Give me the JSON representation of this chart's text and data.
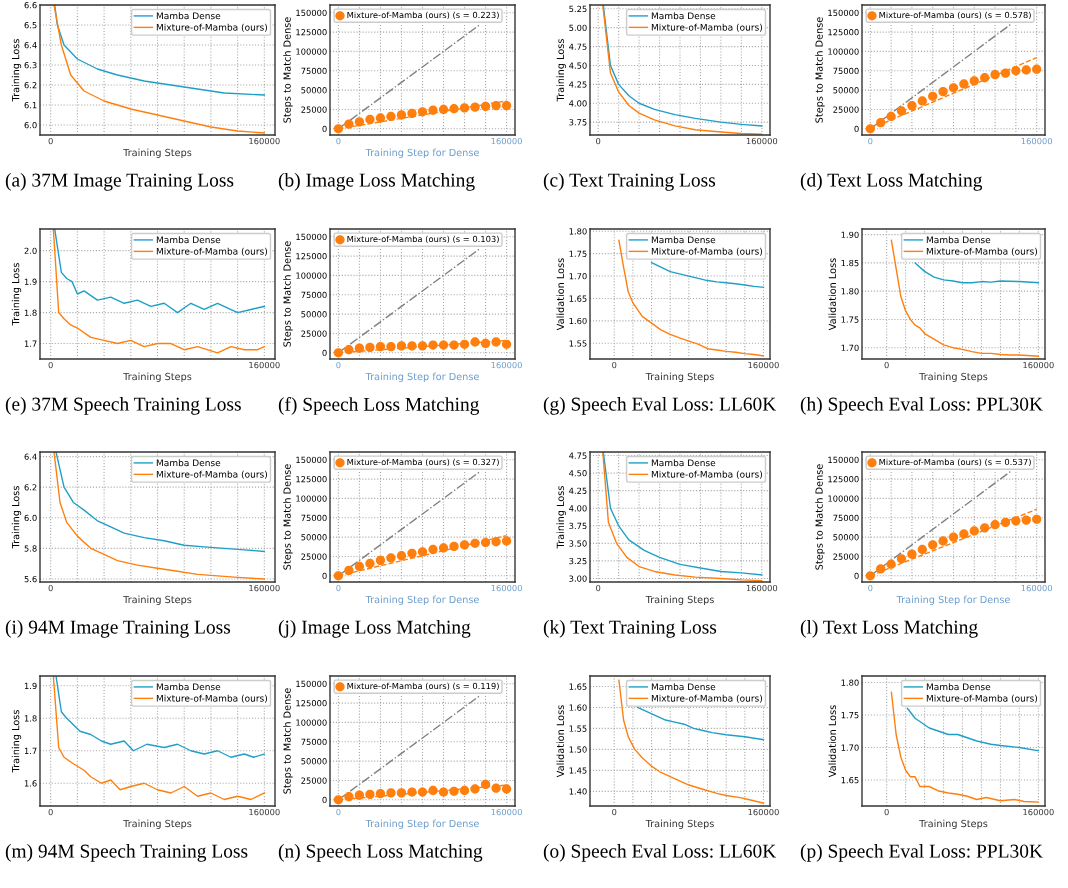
{
  "chart_data": [
    {
      "type": "line",
      "ylabel": "Training Loss",
      "xlabel": "Training Steps",
      "legend": "top right",
      "grid": true,
      "xlim": [
        -8000,
        168000
      ],
      "ylim": [
        5.95,
        6.6
      ],
      "xticks": [
        0,
        {
          "value": 20000,
          "label": null
        },
        {
          "value": 40000,
          "label": null
        },
        {
          "value": 60000,
          "label": null
        },
        {
          "value": 80000,
          "label": null
        },
        {
          "value": 100000,
          "label": null
        },
        {
          "value": 120000,
          "label": null
        },
        {
          "value": 140000,
          "label": null
        },
        160000
      ],
      "yticks": [
        {
          "value": 6.0,
          "label": "6.0"
        },
        6.1,
        6.2,
        6.3,
        6.4,
        6.5,
        6.6
      ],
      "annotations": [
        "(a) 37M Image Training Loss"
      ],
      "series": [
        {
          "name": "Mamba Dense",
          "color": "#1f9fc8",
          "x": [
            3000,
            5000,
            10000,
            20000,
            35000,
            50000,
            70000,
            90000,
            110000,
            130000,
            160000
          ],
          "values": [
            6.6,
            6.5,
            6.4,
            6.33,
            6.28,
            6.25,
            6.22,
            6.2,
            6.18,
            6.16,
            6.15
          ]
        },
        {
          "name": "Mixture-of-Mamba (ours)",
          "color": "#ff7f0e",
          "x": [
            2500,
            8000,
            15000,
            25000,
            40000,
            60000,
            80000,
            100000,
            120000,
            140000,
            160000
          ],
          "values": [
            6.6,
            6.4,
            6.25,
            6.17,
            6.12,
            6.08,
            6.05,
            6.02,
            5.99,
            5.97,
            5.96
          ]
        }
      ]
    },
    {
      "type": "scatter",
      "ylabel": "Steps to Match Dense",
      "xlabel": "Training Step for Dense",
      "legend": "top left",
      "grid": true,
      "xlim": [
        -8000,
        168000
      ],
      "ylim": [
        -8000,
        160000
      ],
      "xticks": [
        0,
        {
          "value": 20000,
          "label": null
        },
        {
          "value": 40000,
          "label": null
        },
        {
          "value": 60000,
          "label": null
        },
        {
          "value": 80000,
          "label": null
        },
        {
          "value": 100000,
          "label": null
        },
        {
          "value": 120000,
          "label": null
        },
        {
          "value": 140000,
          "label": null
        },
        160000
      ],
      "yticks": [
        0,
        25000,
        50000,
        75000,
        100000,
        125000,
        150000
      ],
      "annotations": [
        "(b) Image Loss Matching"
      ],
      "series": [
        {
          "type": "line",
          "line_style": "dashdot",
          "color": "#808080",
          "x": [
            0,
            135000
          ],
          "values": [
            0,
            135000
          ]
        },
        {
          "type": "line",
          "line_style": "dashed",
          "color": "#ff7f0e",
          "x": [
            0,
            160000
          ],
          "values": [
            0,
            36000
          ]
        },
        {
          "type": "scatter",
          "marker": "circle",
          "name": "Mixture-of-Mamba (ours) (s = 0.223)",
          "color": "#ff7f0e",
          "x": [
            0,
            10000,
            20000,
            30000,
            40000,
            50000,
            60000,
            70000,
            80000,
            90000,
            100000,
            110000,
            120000,
            130000,
            140000,
            150000,
            160000
          ],
          "values": [
            0,
            6000,
            9000,
            12000,
            14000,
            16000,
            18000,
            20000,
            22000,
            24000,
            25000,
            26000,
            27000,
            28000,
            29000,
            30000,
            30000
          ]
        }
      ]
    },
    {
      "type": "line",
      "ylabel": "Training Loss",
      "legend": "top right",
      "grid": true,
      "xlim": [
        -8000,
        168000
      ],
      "ylim": [
        3.58,
        5.3
      ],
      "xticks": [
        0,
        {
          "value": 20000,
          "label": null
        },
        {
          "value": 40000,
          "label": null
        },
        {
          "value": 60000,
          "label": null
        },
        {
          "value": 80000,
          "label": null
        },
        {
          "value": 100000,
          "label": null
        },
        {
          "value": 120000,
          "label": null
        },
        {
          "value": 140000,
          "label": null
        },
        160000
      ],
      "yticks": [
        3.75,
        {
          "value": 4.0,
          "label": "4.00"
        },
        4.25,
        {
          "value": 4.5,
          "label": "4.50"
        },
        4.75,
        {
          "value": 5.0,
          "label": "5.00"
        },
        5.25
      ],
      "annotations": [
        "(c) Text Training Loss"
      ],
      "series": [
        {
          "name": "Mamba Dense",
          "color": "#1f9fc8",
          "x": [
            5000,
            12000,
            20000,
            30000,
            40000,
            55000,
            75000,
            95000,
            120000,
            140000,
            160000
          ],
          "values": [
            5.3,
            4.5,
            4.25,
            4.1,
            4.0,
            3.92,
            3.85,
            3.8,
            3.75,
            3.72,
            3.7
          ]
        },
        {
          "name": "Mixture-of-Mamba (ours)",
          "color": "#ff7f0e",
          "x": [
            4500,
            12000,
            20000,
            30000,
            40000,
            55000,
            75000,
            95000,
            120000,
            140000,
            160000
          ],
          "values": [
            5.3,
            4.4,
            4.15,
            3.97,
            3.87,
            3.78,
            3.7,
            3.65,
            3.62,
            3.6,
            3.59
          ]
        }
      ]
    },
    {
      "type": "scatter",
      "ylabel": "Steps to Match Dense",
      "legend": "top left",
      "grid": true,
      "xlim": [
        -8000,
        168000
      ],
      "ylim": [
        -8000,
        160000
      ],
      "xticks": [
        0,
        {
          "value": 20000,
          "label": null
        },
        {
          "value": 40000,
          "label": null
        },
        {
          "value": 60000,
          "label": null
        },
        {
          "value": 80000,
          "label": null
        },
        {
          "value": 100000,
          "label": null
        },
        {
          "value": 120000,
          "label": null
        },
        {
          "value": 140000,
          "label": null
        },
        160000
      ],
      "yticks": [
        0,
        25000,
        50000,
        75000,
        100000,
        125000,
        150000
      ],
      "annotations": [
        "(d) Text Loss Matching"
      ],
      "series": [
        {
          "type": "line",
          "line_style": "dashdot",
          "color": "#808080",
          "x": [
            0,
            135000
          ],
          "values": [
            0,
            135000
          ]
        },
        {
          "type": "line",
          "line_style": "dashed",
          "color": "#ff7f0e",
          "x": [
            0,
            160000
          ],
          "values": [
            0,
            92000
          ]
        },
        {
          "type": "scatter",
          "marker": "circle",
          "name": "Mixture-of-Mamba (ours) (s = 0.578)",
          "color": "#ff7f0e",
          "x": [
            0,
            10000,
            20000,
            30000,
            40000,
            50000,
            60000,
            70000,
            80000,
            90000,
            100000,
            110000,
            120000,
            130000,
            140000,
            150000,
            160000
          ],
          "values": [
            0,
            8000,
            16000,
            23000,
            30000,
            36000,
            42000,
            48000,
            53000,
            58000,
            62000,
            66000,
            70000,
            72000,
            75000,
            76000,
            77000
          ]
        }
      ]
    },
    {
      "type": "line",
      "ylabel": "Training Loss",
      "xlabel": "Training Steps",
      "legend": "top right",
      "grid": true,
      "xlim": [
        -8000,
        168000
      ],
      "ylim": [
        1.65,
        2.07
      ],
      "xticks": [
        0,
        {
          "value": 20000,
          "label": null
        },
        {
          "value": 40000,
          "label": null
        },
        {
          "value": 60000,
          "label": null
        },
        {
          "value": 80000,
          "label": null
        },
        {
          "value": 100000,
          "label": null
        },
        {
          "value": 120000,
          "label": null
        },
        {
          "value": 140000,
          "label": null
        },
        160000
      ],
      "yticks": [
        1.7,
        1.8,
        1.9,
        {
          "value": 2.0,
          "label": "2.0"
        }
      ],
      "annotations": [
        "(e) 37M Speech Training Loss"
      ],
      "series": [
        {
          "name": "Mamba Dense",
          "color": "#1f9fc8",
          "x": [
            3000,
            8000,
            12000,
            16000,
            20000,
            25000,
            35000,
            45000,
            55000,
            65000,
            75000,
            85000,
            95000,
            105000,
            115000,
            125000,
            140000,
            150000,
            160000
          ],
          "values": [
            2.07,
            1.93,
            1.91,
            1.9,
            1.86,
            1.87,
            1.84,
            1.85,
            1.83,
            1.84,
            1.82,
            1.83,
            1.8,
            1.83,
            1.81,
            1.83,
            1.8,
            1.81,
            1.82
          ]
        },
        {
          "name": "Mixture-of-Mamba (ours)",
          "color": "#ff7f0e",
          "x": [
            2000,
            6000,
            10000,
            15000,
            20000,
            30000,
            40000,
            50000,
            60000,
            70000,
            80000,
            90000,
            100000,
            110000,
            125000,
            135000,
            145000,
            155000,
            160000
          ],
          "values": [
            2.07,
            1.8,
            1.78,
            1.76,
            1.75,
            1.72,
            1.71,
            1.7,
            1.71,
            1.69,
            1.7,
            1.7,
            1.68,
            1.69,
            1.67,
            1.69,
            1.68,
            1.68,
            1.69
          ]
        }
      ]
    },
    {
      "type": "scatter",
      "ylabel": "Steps to Match Dense",
      "xlabel": "Training Step for Dense",
      "legend": "top left",
      "grid": true,
      "xlim": [
        -8000,
        168000
      ],
      "ylim": [
        -8000,
        160000
      ],
      "xticks": [
        0,
        {
          "value": 20000,
          "label": null
        },
        {
          "value": 40000,
          "label": null
        },
        {
          "value": 60000,
          "label": null
        },
        {
          "value": 80000,
          "label": null
        },
        {
          "value": 100000,
          "label": null
        },
        {
          "value": 120000,
          "label": null
        },
        {
          "value": 140000,
          "label": null
        },
        160000
      ],
      "yticks": [
        0,
        25000,
        50000,
        75000,
        100000,
        125000,
        150000
      ],
      "annotations": [
        "(f) Speech Loss Matching"
      ],
      "series": [
        {
          "type": "line",
          "line_style": "dashdot",
          "color": "#808080",
          "x": [
            0,
            135000
          ],
          "values": [
            0,
            135000
          ]
        },
        {
          "type": "line",
          "line_style": "dashed",
          "color": "#ff7f0e",
          "x": [
            0,
            160000
          ],
          "values": [
            0,
            16000
          ]
        },
        {
          "type": "scatter",
          "marker": "circle",
          "name": "Mixture-of-Mamba (ours) (s = 0.103)",
          "color": "#ff7f0e",
          "x": [
            0,
            10000,
            20000,
            30000,
            40000,
            50000,
            60000,
            70000,
            80000,
            90000,
            100000,
            110000,
            120000,
            130000,
            140000,
            150000,
            160000
          ],
          "values": [
            0,
            4000,
            6000,
            7000,
            8000,
            8000,
            9000,
            9000,
            9000,
            10000,
            10000,
            10000,
            11000,
            14000,
            12000,
            14000,
            11000
          ]
        }
      ]
    },
    {
      "type": "line",
      "ylabel": "Validation Loss",
      "xlabel": "Training Steps",
      "legend": "top right",
      "grid": true,
      "xlim": [
        -26000,
        167000
      ],
      "ylim": [
        1.515,
        1.805
      ],
      "xticks": [
        0,
        {
          "value": 20000,
          "label": null
        },
        {
          "value": 40000,
          "label": null
        },
        {
          "value": 60000,
          "label": null
        },
        {
          "value": 80000,
          "label": null
        },
        {
          "value": 100000,
          "label": null
        },
        {
          "value": 120000,
          "label": null
        },
        {
          "value": 140000,
          "label": null
        },
        160000
      ],
      "yticks": [
        1.55,
        {
          "value": 1.6,
          "label": "1.60"
        },
        1.65,
        {
          "value": 1.7,
          "label": "1.70"
        },
        1.75,
        {
          "value": 1.8,
          "label": "1.80"
        }
      ],
      "annotations": [
        "(g) Speech Eval Loss: LL60K"
      ],
      "series": [
        {
          "name": "Mamba Dense",
          "color": "#1f9fc8",
          "x": [
            40000,
            50000,
            60000,
            70000,
            80000,
            90000,
            100000,
            110000,
            120000,
            130000,
            140000,
            150000,
            160000
          ],
          "values": [
            1.73,
            1.72,
            1.71,
            1.705,
            1.7,
            1.695,
            1.69,
            1.687,
            1.685,
            1.683,
            1.68,
            1.677,
            1.675
          ]
        },
        {
          "name": "Mixture-of-Mamba (ours)",
          "color": "#ff7f0e",
          "x": [
            5000,
            10000,
            15000,
            20000,
            30000,
            40000,
            50000,
            60000,
            70000,
            80000,
            90000,
            95000,
            100000,
            110000,
            120000,
            130000,
            140000,
            150000,
            160000
          ],
          "values": [
            1.78,
            1.72,
            1.665,
            1.64,
            1.61,
            1.595,
            1.58,
            1.57,
            1.562,
            1.555,
            1.548,
            1.543,
            1.538,
            1.535,
            1.532,
            1.53,
            1.527,
            1.525,
            1.522
          ]
        }
      ]
    },
    {
      "type": "line",
      "ylabel": "Validation Loss",
      "xlabel": "Training Steps",
      "legend": "top right",
      "grid": true,
      "xlim": [
        -26000,
        167000
      ],
      "ylim": [
        1.68,
        1.91
      ],
      "xticks": [
        0,
        {
          "value": 20000,
          "label": null
        },
        {
          "value": 40000,
          "label": null
        },
        {
          "value": 60000,
          "label": null
        },
        {
          "value": 80000,
          "label": null
        },
        {
          "value": 100000,
          "label": null
        },
        {
          "value": 120000,
          "label": null
        },
        {
          "value": 140000,
          "label": null
        },
        160000
      ],
      "yticks": [
        {
          "value": 1.7,
          "label": "1.70"
        },
        1.75,
        {
          "value": 1.8,
          "label": "1.80"
        },
        1.85,
        {
          "value": 1.9,
          "label": "1.90"
        }
      ],
      "annotations": [
        "(h) Speech Eval Loss: PPL30K"
      ],
      "series": [
        {
          "name": "Mamba Dense",
          "color": "#1f9fc8",
          "x": [
            30000,
            40000,
            50000,
            60000,
            70000,
            80000,
            90000,
            100000,
            110000,
            120000,
            140000,
            160000
          ],
          "values": [
            1.85,
            1.835,
            1.825,
            1.82,
            1.818,
            1.815,
            1.815,
            1.817,
            1.816,
            1.818,
            1.817,
            1.815
          ]
        },
        {
          "name": "Mixture-of-Mamba (ours)",
          "color": "#ff7f0e",
          "x": [
            5000,
            15000,
            20000,
            25000,
            30000,
            35000,
            40000,
            50000,
            60000,
            70000,
            80000,
            90000,
            100000,
            110000,
            120000,
            130000,
            140000,
            160000
          ],
          "values": [
            1.89,
            1.79,
            1.765,
            1.75,
            1.74,
            1.735,
            1.725,
            1.715,
            1.705,
            1.7,
            1.697,
            1.693,
            1.69,
            1.69,
            1.688,
            1.687,
            1.687,
            1.685
          ]
        }
      ]
    },
    {
      "type": "line",
      "ylabel": "Training Loss",
      "xlabel": "Training Steps",
      "legend": "top right",
      "grid": true,
      "xlim": [
        -8000,
        168000
      ],
      "ylim": [
        5.58,
        6.43
      ],
      "xticks": [
        0,
        {
          "value": 20000,
          "label": null
        },
        {
          "value": 40000,
          "label": null
        },
        {
          "value": 60000,
          "label": null
        },
        {
          "value": 80000,
          "label": null
        },
        {
          "value": 100000,
          "label": null
        },
        {
          "value": 120000,
          "label": null
        },
        {
          "value": 140000,
          "label": null
        },
        160000
      ],
      "yticks": [
        5.6,
        5.8,
        {
          "value": 6.0,
          "label": "6.0"
        },
        6.2,
        6.4
      ],
      "annotations": [
        "(i) 94M Image Training Loss"
      ],
      "series": [
        {
          "name": "Mamba Dense",
          "color": "#1f9fc8",
          "x": [
            4000,
            10000,
            17000,
            25000,
            35000,
            45000,
            55000,
            70000,
            85000,
            100000,
            115000,
            130000,
            145000,
            160000
          ],
          "values": [
            6.43,
            6.2,
            6.1,
            6.05,
            5.98,
            5.94,
            5.9,
            5.87,
            5.85,
            5.82,
            5.81,
            5.8,
            5.79,
            5.78
          ]
        },
        {
          "name": "Mixture-of-Mamba (ours)",
          "color": "#ff7f0e",
          "x": [
            2500,
            7000,
            12000,
            20000,
            30000,
            40000,
            50000,
            65000,
            80000,
            95000,
            110000,
            125000,
            140000,
            160000
          ],
          "values": [
            6.43,
            6.1,
            5.97,
            5.88,
            5.8,
            5.76,
            5.72,
            5.69,
            5.67,
            5.65,
            5.63,
            5.62,
            5.61,
            5.6
          ]
        }
      ]
    },
    {
      "type": "scatter",
      "ylabel": "Steps to Match Dense",
      "xlabel": "Training Step for Dense",
      "legend": "top left",
      "grid": true,
      "xlim": [
        -8000,
        168000
      ],
      "ylim": [
        -8000,
        160000
      ],
      "xticks": [
        0,
        {
          "value": 20000,
          "label": null
        },
        {
          "value": 40000,
          "label": null
        },
        {
          "value": 60000,
          "label": null
        },
        {
          "value": 80000,
          "label": null
        },
        {
          "value": 100000,
          "label": null
        },
        {
          "value": 120000,
          "label": null
        },
        {
          "value": 140000,
          "label": null
        },
        160000
      ],
      "yticks": [
        0,
        25000,
        50000,
        75000,
        100000,
        125000,
        150000
      ],
      "annotations": [
        "(j) Image Loss Matching"
      ],
      "series": [
        {
          "type": "line",
          "line_style": "dashdot",
          "color": "#808080",
          "x": [
            0,
            135000
          ],
          "values": [
            0,
            135000
          ]
        },
        {
          "type": "line",
          "line_style": "dashed",
          "color": "#ff7f0e",
          "x": [
            0,
            160000
          ],
          "values": [
            0,
            52000
          ]
        },
        {
          "type": "scatter",
          "marker": "circle",
          "name": "Mixture-of-Mamba (ours) (s = 0.327)",
          "color": "#ff7f0e",
          "x": [
            0,
            10000,
            20000,
            30000,
            40000,
            50000,
            60000,
            70000,
            80000,
            90000,
            100000,
            110000,
            120000,
            130000,
            140000,
            150000,
            160000
          ],
          "values": [
            0,
            7000,
            12000,
            16000,
            20000,
            23000,
            26000,
            29000,
            31000,
            34000,
            36000,
            38000,
            40000,
            42000,
            43000,
            44000,
            45000
          ]
        }
      ]
    },
    {
      "type": "line",
      "ylabel": "Training Loss",
      "xlabel": "Training Steps",
      "legend": "top right",
      "grid": true,
      "xlim": [
        -8000,
        168000
      ],
      "ylim": [
        2.95,
        4.8
      ],
      "xticks": [
        0,
        {
          "value": 20000,
          "label": null
        },
        {
          "value": 40000,
          "label": null
        },
        {
          "value": 60000,
          "label": null
        },
        {
          "value": 80000,
          "label": null
        },
        {
          "value": 100000,
          "label": null
        },
        {
          "value": 120000,
          "label": null
        },
        {
          "value": 140000,
          "label": null
        },
        160000
      ],
      "yticks": [
        {
          "value": 3.0,
          "label": "3.00"
        },
        3.25,
        {
          "value": 3.5,
          "label": "3.50"
        },
        3.75,
        {
          "value": 4.0,
          "label": "4.00"
        },
        4.25,
        {
          "value": 4.5,
          "label": "4.50"
        },
        4.75
      ],
      "annotations": [
        "(k) Text Training Loss"
      ],
      "series": [
        {
          "name": "Mamba Dense",
          "color": "#1f9fc8",
          "x": [
            5000,
            12000,
            20000,
            30000,
            45000,
            60000,
            80000,
            100000,
            120000,
            140000,
            160000
          ],
          "values": [
            4.8,
            4.0,
            3.75,
            3.55,
            3.4,
            3.3,
            3.2,
            3.15,
            3.1,
            3.08,
            3.05
          ]
        },
        {
          "name": "Mixture-of-Mamba (ours)",
          "color": "#ff7f0e",
          "x": [
            4500,
            10000,
            18000,
            28000,
            40000,
            55000,
            75000,
            95000,
            120000,
            140000,
            160000
          ],
          "values": [
            4.8,
            3.8,
            3.5,
            3.3,
            3.17,
            3.1,
            3.05,
            3.02,
            3.0,
            2.98,
            2.97
          ]
        }
      ]
    },
    {
      "type": "scatter",
      "ylabel": "Steps to Match Dense",
      "xlabel": "Training Step for Dense",
      "legend": "top left",
      "grid": true,
      "xlim": [
        -8000,
        168000
      ],
      "ylim": [
        -8000,
        160000
      ],
      "xticks": [
        0,
        {
          "value": 20000,
          "label": null
        },
        {
          "value": 40000,
          "label": null
        },
        {
          "value": 60000,
          "label": null
        },
        {
          "value": 80000,
          "label": null
        },
        {
          "value": 100000,
          "label": null
        },
        {
          "value": 120000,
          "label": null
        },
        {
          "value": 140000,
          "label": null
        },
        160000
      ],
      "yticks": [
        0,
        25000,
        50000,
        75000,
        100000,
        125000,
        150000
      ],
      "annotations": [
        "(l) Text Loss Matching"
      ],
      "series": [
        {
          "type": "line",
          "line_style": "dashdot",
          "color": "#808080",
          "x": [
            0,
            135000
          ],
          "values": [
            0,
            135000
          ]
        },
        {
          "type": "line",
          "line_style": "dashed",
          "color": "#ff7f0e",
          "x": [
            0,
            160000
          ],
          "values": [
            0,
            86000
          ]
        },
        {
          "type": "scatter",
          "marker": "circle",
          "name": "Mixture-of-Mamba (ours) (s = 0.537)",
          "color": "#ff7f0e",
          "x": [
            0,
            10000,
            20000,
            30000,
            40000,
            50000,
            60000,
            70000,
            80000,
            90000,
            100000,
            110000,
            120000,
            130000,
            140000,
            150000,
            160000
          ],
          "values": [
            0,
            9000,
            15000,
            22000,
            28000,
            34000,
            40000,
            45000,
            50000,
            54000,
            58000,
            62000,
            66000,
            69000,
            71000,
            72000,
            73000
          ]
        }
      ]
    },
    {
      "type": "line",
      "ylabel": "Training Loss",
      "xlabel": "Training Steps",
      "legend": "top right",
      "grid": true,
      "xlim": [
        -8000,
        168000
      ],
      "ylim": [
        1.53,
        1.93
      ],
      "xticks": [
        0,
        {
          "value": 20000,
          "label": null
        },
        {
          "value": 40000,
          "label": null
        },
        {
          "value": 60000,
          "label": null
        },
        {
          "value": 80000,
          "label": null
        },
        {
          "value": 100000,
          "label": null
        },
        {
          "value": 120000,
          "label": null
        },
        {
          "value": 140000,
          "label": null
        },
        160000
      ],
      "yticks": [
        1.6,
        1.7,
        1.8,
        1.9
      ],
      "annotations": [
        "(m) 94M Speech Training Loss"
      ],
      "series": [
        {
          "name": "Mamba Dense",
          "color": "#1f9fc8",
          "x": [
            4000,
            8000,
            12000,
            17000,
            22000,
            30000,
            38000,
            45000,
            55000,
            62000,
            72000,
            85000,
            95000,
            105000,
            115000,
            125000,
            135000,
            145000,
            152000,
            160000
          ],
          "values": [
            1.93,
            1.82,
            1.8,
            1.78,
            1.76,
            1.75,
            1.73,
            1.72,
            1.73,
            1.7,
            1.72,
            1.71,
            1.72,
            1.7,
            1.69,
            1.7,
            1.68,
            1.69,
            1.68,
            1.69
          ]
        },
        {
          "name": "Mixture-of-Mamba (ours)",
          "color": "#ff7f0e",
          "x": [
            2000,
            6000,
            10000,
            17000,
            25000,
            30000,
            38000,
            45000,
            52000,
            60000,
            70000,
            80000,
            90000,
            100000,
            110000,
            120000,
            130000,
            140000,
            150000,
            160000
          ],
          "values": [
            1.93,
            1.71,
            1.68,
            1.66,
            1.64,
            1.62,
            1.6,
            1.61,
            1.58,
            1.59,
            1.6,
            1.58,
            1.57,
            1.59,
            1.56,
            1.57,
            1.55,
            1.56,
            1.55,
            1.57
          ]
        }
      ]
    },
    {
      "type": "scatter",
      "ylabel": "Steps to Match Dense",
      "xlabel": "Training Step for Dense",
      "legend": "top left",
      "grid": true,
      "xlim": [
        -8000,
        168000
      ],
      "ylim": [
        -8000,
        160000
      ],
      "xticks": [
        0,
        {
          "value": 20000,
          "label": null
        },
        {
          "value": 40000,
          "label": null
        },
        {
          "value": 60000,
          "label": null
        },
        {
          "value": 80000,
          "label": null
        },
        {
          "value": 100000,
          "label": null
        },
        {
          "value": 120000,
          "label": null
        },
        {
          "value": 140000,
          "label": null
        },
        160000
      ],
      "yticks": [
        0,
        25000,
        50000,
        75000,
        100000,
        125000,
        150000
      ],
      "annotations": [
        "(n) Speech Loss Matching"
      ],
      "series": [
        {
          "type": "line",
          "line_style": "dashdot",
          "color": "#808080",
          "x": [
            0,
            135000
          ],
          "values": [
            0,
            135000
          ]
        },
        {
          "type": "line",
          "line_style": "dashed",
          "color": "#ff7f0e",
          "x": [
            0,
            160000
          ],
          "values": [
            0,
            19000
          ]
        },
        {
          "type": "scatter",
          "marker": "circle",
          "name": "Mixture-of-Mamba (ours) (s = 0.119)",
          "color": "#ff7f0e",
          "x": [
            0,
            10000,
            20000,
            30000,
            40000,
            50000,
            60000,
            70000,
            80000,
            90000,
            100000,
            110000,
            120000,
            130000,
            140000,
            150000,
            160000
          ],
          "values": [
            0,
            4000,
            6000,
            7000,
            8000,
            9000,
            9000,
            10000,
            10000,
            12000,
            10000,
            11000,
            12000,
            14000,
            20000,
            15000,
            14000
          ]
        }
      ]
    },
    {
      "type": "line",
      "ylabel": "Validation Loss",
      "xlabel": "Training Steps",
      "legend": "top right",
      "grid": true,
      "xlim": [
        -26000,
        167000
      ],
      "ylim": [
        1.365,
        1.675
      ],
      "xticks": [
        0,
        {
          "value": 20000,
          "label": null
        },
        {
          "value": 40000,
          "label": null
        },
        {
          "value": 60000,
          "label": null
        },
        {
          "value": 80000,
          "label": null
        },
        {
          "value": 100000,
          "label": null
        },
        {
          "value": 120000,
          "label": null
        },
        {
          "value": 140000,
          "label": null
        },
        160000
      ],
      "yticks": [
        {
          "value": 1.4,
          "label": "1.40"
        },
        1.45,
        {
          "value": 1.5,
          "label": "1.50"
        },
        1.55,
        {
          "value": 1.6,
          "label": "1.60"
        },
        1.65
      ],
      "annotations": [
        "(o) Speech Eval Loss: LL60K"
      ],
      "series": [
        {
          "name": "Mamba Dense",
          "color": "#1f9fc8",
          "x": [
            25000,
            35000,
            45000,
            55000,
            65000,
            75000,
            85000,
            95000,
            105000,
            120000,
            140000,
            160000
          ],
          "values": [
            1.6,
            1.59,
            1.58,
            1.57,
            1.565,
            1.56,
            1.55,
            1.545,
            1.54,
            1.535,
            1.53,
            1.523
          ]
        },
        {
          "name": "Mixture-of-Mamba (ours)",
          "color": "#ff7f0e",
          "x": [
            5000,
            10000,
            15000,
            22000,
            30000,
            40000,
            50000,
            60000,
            70000,
            80000,
            95000,
            110000,
            120000,
            135000,
            145000,
            160000
          ],
          "values": [
            1.665,
            1.57,
            1.53,
            1.5,
            1.48,
            1.46,
            1.445,
            1.435,
            1.425,
            1.415,
            1.405,
            1.395,
            1.39,
            1.385,
            1.38,
            1.372
          ]
        }
      ]
    },
    {
      "type": "line",
      "ylabel": "Validation Loss",
      "xlabel": "Training Steps",
      "legend": "top right",
      "grid": true,
      "xlim": [
        -26000,
        167000
      ],
      "ylim": [
        1.61,
        1.81
      ],
      "xticks": [
        0,
        {
          "value": 20000,
          "label": null
        },
        {
          "value": 40000,
          "label": null
        },
        {
          "value": 60000,
          "label": null
        },
        {
          "value": 80000,
          "label": null
        },
        {
          "value": 100000,
          "label": null
        },
        {
          "value": 120000,
          "label": null
        },
        {
          "value": 140000,
          "label": null
        },
        160000
      ],
      "yticks": [
        1.65,
        {
          "value": 1.7,
          "label": "1.70"
        },
        1.75,
        {
          "value": 1.8,
          "label": "1.80"
        }
      ],
      "annotations": [
        "(p) Speech Eval Loss: PPL30K"
      ],
      "series": [
        {
          "name": "Mamba Dense",
          "color": "#1f9fc8",
          "x": [
            22000,
            30000,
            40000,
            45000,
            55000,
            65000,
            75000,
            85000,
            95000,
            110000,
            120000,
            140000,
            160000
          ],
          "values": [
            1.76,
            1.745,
            1.735,
            1.73,
            1.725,
            1.72,
            1.72,
            1.715,
            1.71,
            1.705,
            1.703,
            1.7,
            1.695
          ]
        },
        {
          "name": "Mixture-of-Mamba (ours)",
          "color": "#ff7f0e",
          "x": [
            5000,
            10000,
            15000,
            20000,
            25000,
            30000,
            35000,
            45000,
            55000,
            65000,
            75000,
            85000,
            95000,
            105000,
            120000,
            135000,
            145000,
            160000
          ],
          "values": [
            1.785,
            1.72,
            1.685,
            1.665,
            1.655,
            1.655,
            1.64,
            1.64,
            1.633,
            1.63,
            1.628,
            1.625,
            1.62,
            1.623,
            1.618,
            1.62,
            1.617,
            1.616
          ]
        }
      ]
    }
  ]
}
